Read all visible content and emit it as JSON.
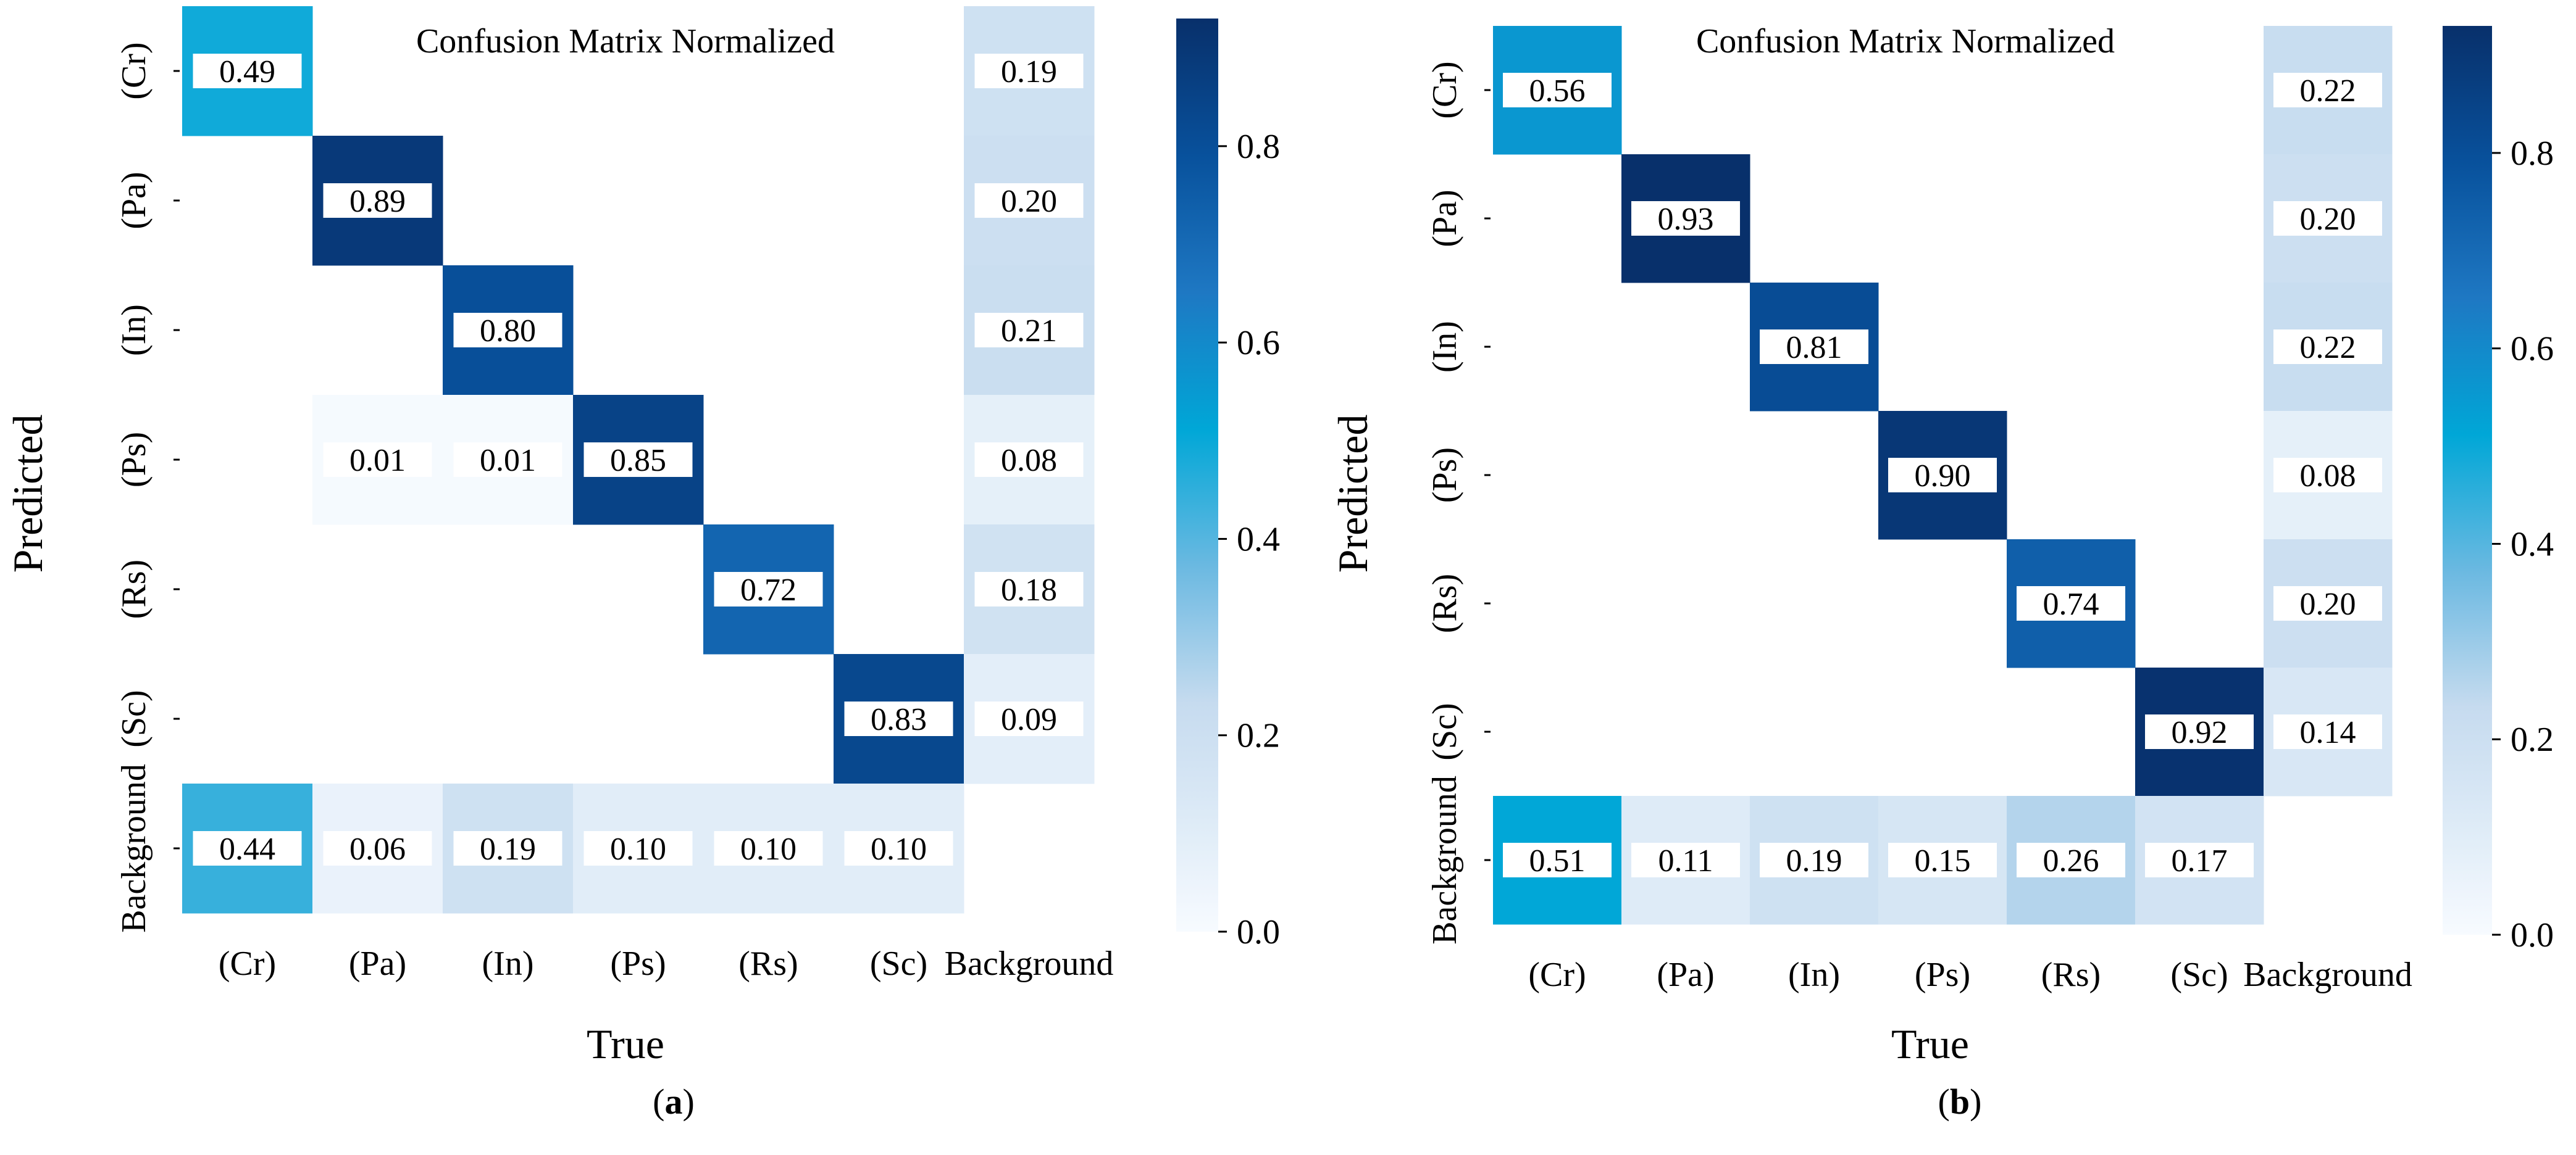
{
  "colors": {
    "low": "#f7fbff",
    "high": "#08306b",
    "label_box": "#ffffff",
    "text": "#000000"
  },
  "chart_data": [
    {
      "type": "heatmap",
      "panel_label": "a",
      "title": "Confusion Matrix Normalized",
      "xlabel": "True",
      "ylabel": "Predicted",
      "x_categories": [
        "(Cr)",
        "(Pa)",
        "(In)",
        "(Ps)",
        "(Rs)",
        "(Sc)",
        "Background"
      ],
      "y_categories": [
        "(Cr)",
        "(Pa)",
        "(In)",
        "(Ps)",
        "(Rs)",
        "(Sc)",
        "Background"
      ],
      "values": [
        [
          0.49,
          null,
          null,
          null,
          null,
          null,
          0.19
        ],
        [
          null,
          0.89,
          null,
          null,
          null,
          null,
          0.2
        ],
        [
          null,
          null,
          0.8,
          null,
          null,
          null,
          0.21
        ],
        [
          null,
          0.01,
          0.01,
          0.85,
          null,
          null,
          0.08
        ],
        [
          null,
          null,
          null,
          null,
          0.72,
          null,
          0.18
        ],
        [
          null,
          null,
          null,
          null,
          null,
          0.83,
          0.09
        ],
        [
          0.44,
          0.06,
          0.19,
          0.1,
          0.1,
          0.1,
          null
        ]
      ],
      "labels": [
        [
          "0.49",
          "",
          "",
          "",
          "",
          "",
          "0.19"
        ],
        [
          "",
          "0.89",
          "",
          "",
          "",
          "",
          "0.20"
        ],
        [
          "",
          "",
          "0.80",
          "",
          "",
          "",
          "0.21"
        ],
        [
          "",
          "0.01",
          "0.01",
          "0.85",
          "",
          "",
          "0.08"
        ],
        [
          "",
          "",
          "",
          "",
          "0.72",
          "",
          "0.18"
        ],
        [
          "",
          "",
          "",
          "",
          "",
          "0.83",
          "0.09"
        ],
        [
          "0.44",
          "0.06",
          "0.19",
          "0.10",
          "0.10",
          "0.10",
          ""
        ]
      ],
      "colorbar": {
        "range": [
          0,
          0.93
        ],
        "ticks": [
          0.0,
          0.2,
          0.4,
          0.6,
          0.8
        ],
        "tick_labels": [
          "0.0",
          "0.2",
          "0.4",
          "0.6",
          "0.8"
        ]
      }
    },
    {
      "type": "heatmap",
      "panel_label": "b",
      "title": "Confusion Matrix Normalized",
      "xlabel": "True",
      "ylabel": "Predicted",
      "x_categories": [
        "(Cr)",
        "(Pa)",
        "(In)",
        "(Ps)",
        "(Rs)",
        "(Sc)",
        "Background"
      ],
      "y_categories": [
        "(Cr)",
        "(Pa)",
        "(In)",
        "(Ps)",
        "(Rs)",
        "(Sc)",
        "Background"
      ],
      "values": [
        [
          0.56,
          null,
          null,
          null,
          null,
          null,
          0.22
        ],
        [
          null,
          0.93,
          null,
          null,
          null,
          null,
          0.2
        ],
        [
          null,
          null,
          0.81,
          null,
          null,
          null,
          0.22
        ],
        [
          null,
          null,
          null,
          0.9,
          null,
          null,
          0.08
        ],
        [
          null,
          null,
          null,
          null,
          0.74,
          null,
          0.2
        ],
        [
          null,
          null,
          null,
          null,
          null,
          0.92,
          0.14
        ],
        [
          0.51,
          0.11,
          0.19,
          0.15,
          0.26,
          0.17,
          null
        ]
      ],
      "labels": [
        [
          "0.56",
          "",
          "",
          "",
          "",
          "",
          "0.22"
        ],
        [
          "",
          "0.93",
          "",
          "",
          "",
          "",
          "0.20"
        ],
        [
          "",
          "",
          "0.81",
          "",
          "",
          "",
          "0.22"
        ],
        [
          "",
          "",
          "",
          "0.90",
          "",
          "",
          "0.08"
        ],
        [
          "",
          "",
          "",
          "",
          "0.74",
          "",
          "0.20"
        ],
        [
          "",
          "",
          "",
          "",
          "",
          "0.92",
          "0.14"
        ],
        [
          "0.51",
          "0.11",
          "0.19",
          "0.15",
          "0.26",
          "0.17",
          ""
        ]
      ],
      "colorbar": {
        "range": [
          0,
          0.93
        ],
        "ticks": [
          0.0,
          0.2,
          0.4,
          0.6,
          0.8
        ],
        "tick_labels": [
          "0.0",
          "0.2",
          "0.4",
          "0.6",
          "0.8"
        ]
      }
    }
  ]
}
